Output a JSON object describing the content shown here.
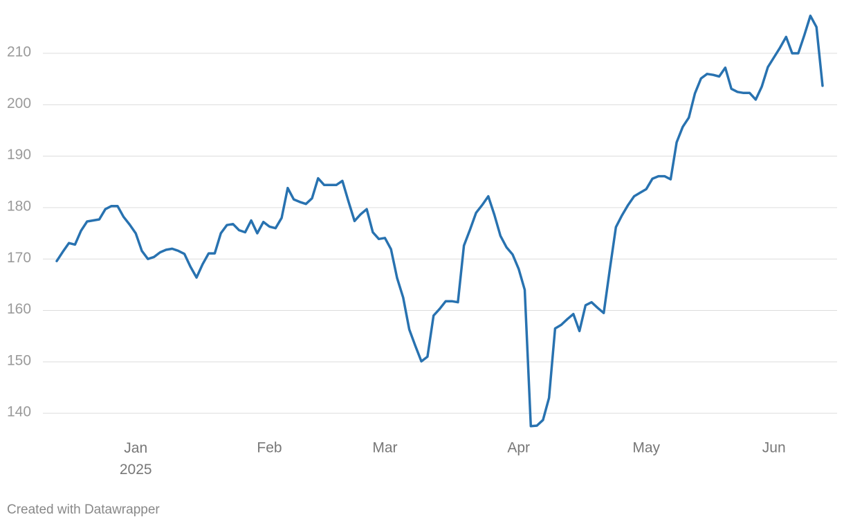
{
  "chart_data": {
    "type": "line",
    "source": "Created with Datawrapper",
    "categories": [
      null,
      null,
      null,
      null,
      null,
      null,
      null,
      null,
      null,
      null,
      null,
      null,
      null,
      "Jan 2025",
      null,
      null,
      null,
      null,
      null,
      null,
      null,
      null,
      null,
      null,
      null,
      null,
      null,
      null,
      null,
      null,
      null,
      null,
      null,
      null,
      null,
      "Feb",
      null,
      null,
      null,
      null,
      null,
      null,
      null,
      null,
      null,
      null,
      null,
      null,
      null,
      null,
      null,
      null,
      null,
      null,
      "Mar",
      null,
      null,
      null,
      null,
      null,
      null,
      null,
      null,
      null,
      null,
      null,
      null,
      null,
      null,
      null,
      null,
      null,
      null,
      null,
      null,
      null,
      "Apr",
      null,
      null,
      null,
      null,
      null,
      null,
      null,
      null,
      null,
      null,
      null,
      null,
      null,
      null,
      null,
      null,
      null,
      null,
      null,
      null,
      "May",
      null,
      null,
      null,
      null,
      null,
      null,
      null,
      null,
      null,
      null,
      null,
      null,
      null,
      null,
      null,
      null,
      null,
      null,
      null,
      null,
      "Jun",
      null,
      null,
      null,
      null,
      null,
      null,
      null,
      null
    ],
    "series": [
      {
        "name": null,
        "color": "#2872b0",
        "values": [
          169.6,
          171.4,
          173.1,
          172.8,
          175.5,
          177.3,
          177.5,
          177.7,
          179.7,
          180.3,
          180.3,
          178.2,
          176.7,
          175.0,
          171.6,
          170.0,
          170.4,
          171.3,
          171.8,
          172.0,
          171.6,
          171.0,
          168.5,
          166.4,
          169.0,
          171.1,
          171.1,
          175.0,
          176.6,
          176.8,
          175.6,
          175.2,
          177.5,
          175.0,
          177.2,
          176.3,
          176.0,
          178.0,
          183.8,
          181.6,
          181.1,
          180.7,
          181.8,
          185.7,
          184.4,
          184.4,
          184.4,
          185.2,
          181.2,
          177.4,
          178.7,
          179.7,
          175.2,
          173.9,
          174.1,
          171.9,
          166.3,
          162.5,
          156.3,
          153.1,
          150.1,
          151.0,
          159.0,
          160.3,
          161.8,
          161.8,
          161.6,
          172.6,
          175.7,
          179.0,
          180.5,
          182.2,
          178.6,
          174.5,
          172.3,
          170.9,
          168.1,
          164.0,
          137.5,
          137.6,
          138.7,
          143.0,
          156.5,
          157.2,
          158.3,
          159.3,
          156.0,
          161.0,
          161.6,
          160.5,
          159.5,
          168.0,
          176.2,
          178.5,
          180.5,
          182.2,
          182.9,
          183.6,
          185.6,
          186.1,
          186.1,
          185.5,
          192.7,
          195.7,
          197.5,
          202.2,
          205.1,
          206.0,
          205.8,
          205.5,
          207.2,
          203.1,
          202.5,
          202.3,
          202.3,
          201.0,
          203.5,
          207.3,
          209.2,
          211.1,
          213.2,
          210.0,
          210.0,
          213.5,
          217.3,
          215.1,
          203.7
        ]
      }
    ],
    "ylim": [
      135,
      218
    ],
    "yticks": [
      140,
      150,
      160,
      170,
      180,
      190,
      200,
      210
    ],
    "grid": true
  }
}
